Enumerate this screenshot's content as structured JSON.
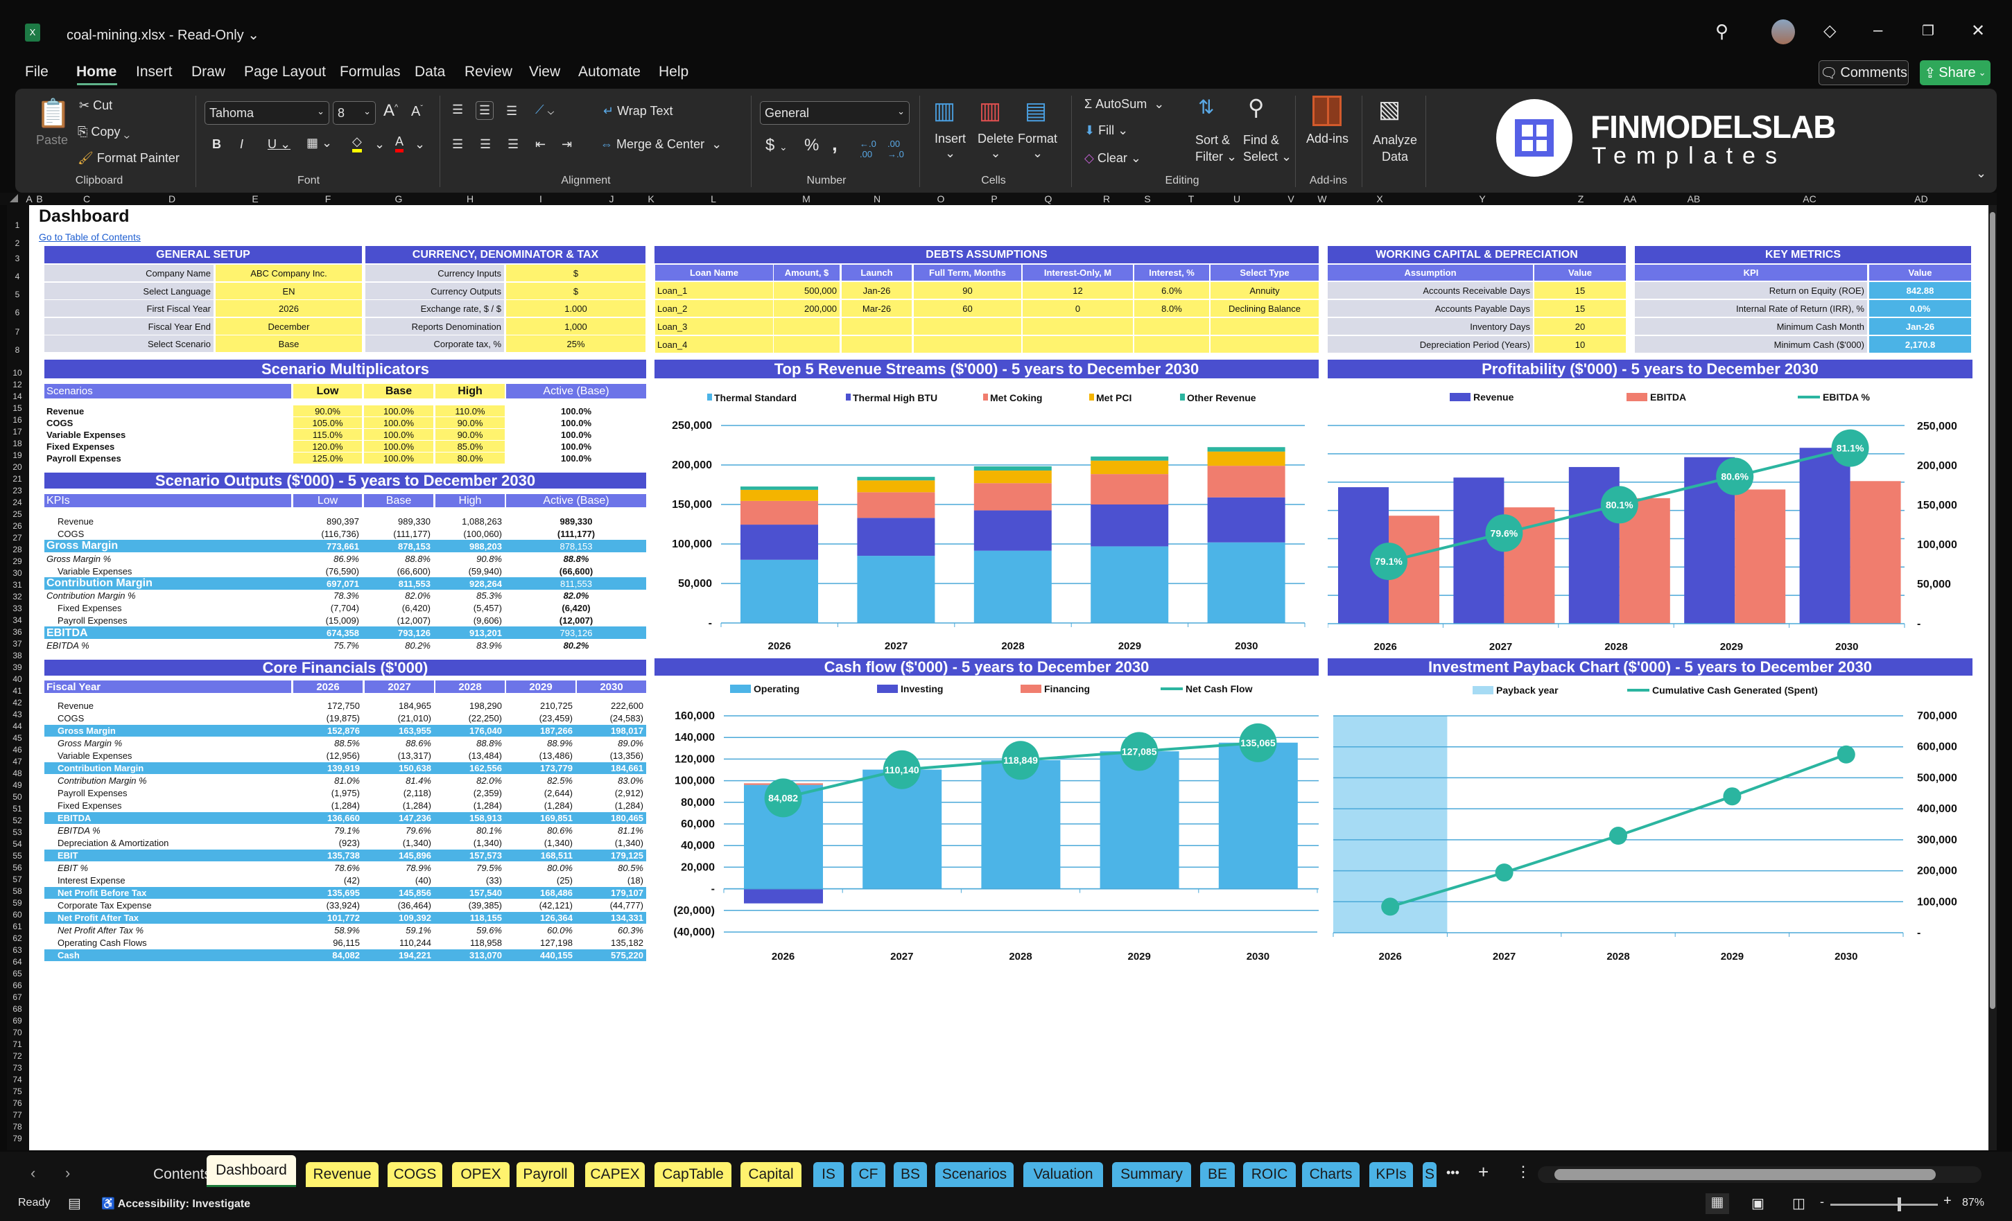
{
  "window": {
    "title": "coal-mining.xlsx  -  Read-Only",
    "title_chevron": "⌄",
    "comments_label": "Comments",
    "share_label": "Share"
  },
  "menu": [
    "File",
    "Home",
    "Insert",
    "Draw",
    "Page Layout",
    "Formulas",
    "Data",
    "Review",
    "View",
    "Automate",
    "Help"
  ],
  "menu_active": "Home",
  "ribbon": {
    "paste": "Paste",
    "cut": "Cut",
    "copy": "Copy",
    "format_painter": "Format Painter",
    "clipboard": "Clipboard",
    "font_name": "Tahoma",
    "font_size": "8",
    "font": "Font",
    "wrap_text": "Wrap Text",
    "merge_center": "Merge & Center",
    "alignment": "Alignment",
    "number_format": "General",
    "number": "Number",
    "insert": "Insert",
    "delete": "Delete",
    "format": "Format",
    "cells": "Cells",
    "autosum": "AutoSum",
    "fill": "Fill",
    "clear": "Clear",
    "sort_filter_1": "Sort &",
    "sort_filter_2": "Filter",
    "find_select_1": "Find &",
    "find_select_2": "Select",
    "editing": "Editing",
    "addins": "Add-ins",
    "addins_group": "Add-ins",
    "analyze_1": "Analyze",
    "analyze_2": "Data",
    "logo_brand": "FINMODELSLAB",
    "logo_sub": "Templates"
  },
  "sheet": {
    "title": "Dashboard",
    "toc_link": "Go to Table of Contents",
    "columns": [
      "A",
      "B",
      "C",
      "D",
      "E",
      "F",
      "G",
      "H",
      "I",
      "J",
      "K",
      "L",
      "M",
      "N",
      "O",
      "P",
      "Q",
      "R",
      "S",
      "T",
      "U",
      "V",
      "W",
      "X",
      "Y",
      "Z",
      "AA",
      "AB",
      "AC",
      "AD"
    ],
    "rows": [
      "1",
      "2",
      "3",
      "4",
      "5",
      "6",
      "7",
      "8",
      "10",
      "12",
      "14",
      "15",
      "16",
      "17",
      "18",
      "19",
      "20",
      "21",
      "23",
      "24",
      "25",
      "26",
      "27",
      "28",
      "29",
      "30",
      "31",
      "32",
      "33",
      "34",
      "36",
      "37",
      "38",
      "39",
      "40",
      "41",
      "42",
      "43",
      "44",
      "45",
      "46",
      "47",
      "48",
      "49",
      "50",
      "51",
      "52",
      "53",
      "54",
      "55",
      "56",
      "57",
      "58",
      "59",
      "60",
      "61",
      "62",
      "63",
      "64",
      "65",
      "66",
      "67",
      "68",
      "69",
      "70",
      "71",
      "72",
      "73",
      "74",
      "75",
      "76",
      "77",
      "78",
      "79"
    ]
  },
  "general_setup": {
    "title": "GENERAL SETUP",
    "rows": [
      [
        "Company Name",
        "ABC Company Inc."
      ],
      [
        "Select Language",
        "EN"
      ],
      [
        "First Fiscal Year",
        "2026"
      ],
      [
        "Fiscal Year End",
        "December"
      ],
      [
        "Select Scenario",
        "Base"
      ]
    ]
  },
  "currency": {
    "title": "CURRENCY, DENOMINATOR & TAX",
    "rows": [
      [
        "Currency Inputs",
        "$"
      ],
      [
        "Currency Outputs",
        "$"
      ],
      [
        "Exchange rate, $ / $",
        "1.000"
      ],
      [
        "Reports Denomination",
        "1,000"
      ],
      [
        "Corporate tax, %",
        "25%"
      ]
    ]
  },
  "debts": {
    "title": "DEBTS ASSUMPTIONS",
    "headers": [
      "Loan Name",
      "Amount, $",
      "Launch",
      "Full Term, Months",
      "Interest-Only, M",
      "Interest, %",
      "Select Type"
    ],
    "rows": [
      [
        "Loan_1",
        "500,000",
        "Jan-26",
        "90",
        "12",
        "6.0%",
        "Annuity"
      ],
      [
        "Loan_2",
        "200,000",
        "Mar-26",
        "60",
        "0",
        "8.0%",
        "Declining Balance"
      ],
      [
        "Loan_3",
        "",
        "",
        "",
        "",
        "",
        ""
      ],
      [
        "Loan_4",
        "",
        "",
        "",
        "",
        "",
        ""
      ]
    ]
  },
  "working_capital": {
    "title": "WORKING CAPITAL & DEPRECIATION",
    "headers": [
      "Assumption",
      "Value"
    ],
    "rows": [
      [
        "Accounts Receivable Days",
        "15"
      ],
      [
        "Accounts Payable Days",
        "15"
      ],
      [
        "Inventory Days",
        "20"
      ],
      [
        "Depreciation Period (Years)",
        "10"
      ]
    ]
  },
  "key_metrics": {
    "title": "KEY METRICS",
    "headers": [
      "KPI",
      "Value"
    ],
    "rows": [
      [
        "Return on Equity (ROE)",
        "842.88"
      ],
      [
        "Internal Rate of Return (IRR), %",
        "0.0%"
      ],
      [
        "Minimum Cash Month",
        "Jan-26"
      ],
      [
        "Minimum Cash ($'000)",
        "2,170.8"
      ]
    ]
  },
  "scenario_multiplicators": {
    "title": "Scenario Multiplicators",
    "headers": [
      "Scenarios",
      "Low",
      "Base",
      "High",
      "Active (Base)"
    ],
    "rows": [
      [
        "Revenue",
        "90.0%",
        "100.0%",
        "110.0%",
        "100.0%"
      ],
      [
        "COGS",
        "105.0%",
        "100.0%",
        "90.0%",
        "100.0%"
      ],
      [
        "Variable Expenses",
        "115.0%",
        "100.0%",
        "90.0%",
        "100.0%"
      ],
      [
        "Fixed Expenses",
        "120.0%",
        "100.0%",
        "85.0%",
        "100.0%"
      ],
      [
        "Payroll Expenses",
        "125.0%",
        "100.0%",
        "80.0%",
        "100.0%"
      ]
    ]
  },
  "scenario_outputs": {
    "title": "Scenario Outputs ($'000) - 5 years to December 2030",
    "headers": [
      "KPIs",
      "Low",
      "Base",
      "High",
      "Active (Base)"
    ],
    "rows": [
      {
        "style": "normal",
        "label": "Revenue",
        "values": [
          "890,397",
          "989,330",
          "1,088,263",
          "989,330"
        ]
      },
      {
        "style": "normal",
        "label": "COGS",
        "values": [
          "(116,736)",
          "(111,177)",
          "(100,060)",
          "(111,177)"
        ]
      },
      {
        "style": "band",
        "label": "Gross Margin",
        "values": [
          "773,661",
          "878,153",
          "988,203",
          "878,153"
        ]
      },
      {
        "style": "pct",
        "label": "Gross Margin %",
        "values": [
          "86.9%",
          "88.8%",
          "90.8%",
          "88.8%"
        ]
      },
      {
        "style": "normal",
        "label": "Variable Expenses",
        "values": [
          "(76,590)",
          "(66,600)",
          "(59,940)",
          "(66,600)"
        ]
      },
      {
        "style": "band",
        "label": "Contribution Margin",
        "values": [
          "697,071",
          "811,553",
          "928,264",
          "811,553"
        ]
      },
      {
        "style": "pct",
        "label": "Contribution Margin %",
        "values": [
          "78.3%",
          "82.0%",
          "85.3%",
          "82.0%"
        ]
      },
      {
        "style": "normal",
        "label": "Fixed Expenses",
        "values": [
          "(7,704)",
          "(6,420)",
          "(5,457)",
          "(6,420)"
        ]
      },
      {
        "style": "normal",
        "label": "Payroll Expenses",
        "values": [
          "(15,009)",
          "(12,007)",
          "(9,606)",
          "(12,007)"
        ]
      },
      {
        "style": "band",
        "label": "EBITDA",
        "values": [
          "674,358",
          "793,126",
          "913,201",
          "793,126"
        ]
      },
      {
        "style": "pct",
        "label": "EBITDA %",
        "values": [
          "75.7%",
          "80.2%",
          "83.9%",
          "80.2%"
        ]
      }
    ]
  },
  "core_financials": {
    "title": "Core Financials ($'000)",
    "headers": [
      "Fiscal Year",
      "2026",
      "2027",
      "2028",
      "2029",
      "2030"
    ],
    "rows": [
      {
        "style": "normal",
        "label": "Revenue",
        "values": [
          "172,750",
          "184,965",
          "198,290",
          "210,725",
          "222,600"
        ]
      },
      {
        "style": "normal",
        "label": "COGS",
        "values": [
          "(19,875)",
          "(21,010)",
          "(22,250)",
          "(23,459)",
          "(24,583)"
        ]
      },
      {
        "style": "band",
        "label": "Gross Margin",
        "values": [
          "152,876",
          "163,955",
          "176,040",
          "187,266",
          "198,017"
        ]
      },
      {
        "style": "pct",
        "label": "Gross Margin %",
        "values": [
          "88.5%",
          "88.6%",
          "88.8%",
          "88.9%",
          "89.0%"
        ]
      },
      {
        "style": "normal",
        "label": "Variable Expenses",
        "values": [
          "(12,956)",
          "(13,317)",
          "(13,484)",
          "(13,486)",
          "(13,356)"
        ]
      },
      {
        "style": "band",
        "label": "Contribution Margin",
        "values": [
          "139,919",
          "150,638",
          "162,556",
          "173,779",
          "184,661"
        ]
      },
      {
        "style": "pct",
        "label": "Contribution Margin %",
        "values": [
          "81.0%",
          "81.4%",
          "82.0%",
          "82.5%",
          "83.0%"
        ]
      },
      {
        "style": "normal",
        "label": "Payroll Expenses",
        "values": [
          "(1,975)",
          "(2,118)",
          "(2,359)",
          "(2,644)",
          "(2,912)"
        ]
      },
      {
        "style": "normal",
        "label": "Fixed Expenses",
        "values": [
          "(1,284)",
          "(1,284)",
          "(1,284)",
          "(1,284)",
          "(1,284)"
        ]
      },
      {
        "style": "band",
        "label": "EBITDA",
        "values": [
          "136,660",
          "147,236",
          "158,913",
          "169,851",
          "180,465"
        ]
      },
      {
        "style": "pct",
        "label": "EBITDA %",
        "values": [
          "79.1%",
          "79.6%",
          "80.1%",
          "80.6%",
          "81.1%"
        ]
      },
      {
        "style": "normal",
        "label": "Depreciation & Amortization",
        "values": [
          "(923)",
          "(1,340)",
          "(1,340)",
          "(1,340)",
          "(1,340)"
        ]
      },
      {
        "style": "band",
        "label": "EBIT",
        "values": [
          "135,738",
          "145,896",
          "157,573",
          "168,511",
          "179,125"
        ]
      },
      {
        "style": "pct",
        "label": "EBIT %",
        "values": [
          "78.6%",
          "78.9%",
          "79.5%",
          "80.0%",
          "80.5%"
        ]
      },
      {
        "style": "normal",
        "label": "Interest Expense",
        "values": [
          "(42)",
          "(40)",
          "(33)",
          "(25)",
          "(18)"
        ]
      },
      {
        "style": "band",
        "label": "Net Profit Before Tax",
        "values": [
          "135,695",
          "145,856",
          "157,540",
          "168,486",
          "179,107"
        ]
      },
      {
        "style": "normal",
        "label": "Corporate Tax Expense",
        "values": [
          "(33,924)",
          "(36,464)",
          "(39,385)",
          "(42,121)",
          "(44,777)"
        ]
      },
      {
        "style": "band",
        "label": "Net Profit After Tax",
        "values": [
          "101,772",
          "109,392",
          "118,155",
          "126,364",
          "134,331"
        ]
      },
      {
        "style": "pct",
        "label": "Net Profit After Tax %",
        "values": [
          "58.9%",
          "59.1%",
          "59.6%",
          "60.0%",
          "60.3%"
        ]
      },
      {
        "style": "normal",
        "label": "Operating Cash Flows",
        "values": [
          "96,115",
          "110,244",
          "118,958",
          "127,198",
          "135,182"
        ]
      },
      {
        "style": "band",
        "label": "Cash",
        "values": [
          "84,082",
          "194,221",
          "313,070",
          "440,155",
          "575,220"
        ]
      }
    ]
  },
  "chart_data": [
    {
      "id": "revenue",
      "type": "bar",
      "stacked": true,
      "title": "Top 5 Revenue Streams ($'000) - 5 years to December 2030",
      "categories": [
        "2026",
        "2027",
        "2028",
        "2029",
        "2030"
      ],
      "ylim": [
        0,
        250000
      ],
      "yticks": [
        "-",
        "50,000",
        "100,000",
        "150,000",
        "200,000",
        "250,000"
      ],
      "grid": true,
      "legend": "top",
      "series": [
        {
          "name": "Thermal Standard",
          "color": "#4cb4e7",
          "values": [
            80000,
            85000,
            91500,
            97000,
            102000
          ]
        },
        {
          "name": "Thermal High BTU",
          "color": "#4c51d0",
          "values": [
            44500,
            48000,
            51000,
            53000,
            57000
          ]
        },
        {
          "name": "Met Coking",
          "color": "#f07d6e",
          "values": [
            30000,
            32500,
            34500,
            38500,
            40000
          ]
        },
        {
          "name": "Met PCI",
          "color": "#f4b400",
          "values": [
            14000,
            15000,
            16000,
            17000,
            18000
          ]
        },
        {
          "name": "Other Revenue",
          "color": "#2bb5a0",
          "values": [
            4250,
            4465,
            5290,
            5225,
            5600
          ]
        }
      ]
    },
    {
      "id": "profitability",
      "type": "bar+line",
      "title": "Profitability ($'000) - 5 years to December 2030",
      "categories": [
        "2026",
        "2027",
        "2028",
        "2029",
        "2030"
      ],
      "ylim": [
        0,
        250000
      ],
      "yticks": [
        "-",
        "50,000",
        "100,000",
        "150,000",
        "200,000",
        "250,000"
      ],
      "y_axis_side": "right",
      "y2lim": [
        78,
        81.5
      ],
      "grid": true,
      "legend": "top",
      "series": [
        {
          "name": "Revenue",
          "kind": "bar",
          "color": "#4c51d0",
          "values": [
            172750,
            184965,
            198290,
            210725,
            222600
          ]
        },
        {
          "name": "EBITDA",
          "kind": "bar",
          "color": "#f07d6e",
          "values": [
            136660,
            147236,
            158913,
            169851,
            180465
          ]
        },
        {
          "name": "EBITDA %",
          "kind": "line",
          "axis": "secondary",
          "color": "#2bb5a0",
          "values": [
            79.1,
            79.6,
            80.1,
            80.6,
            81.1
          ],
          "labels": [
            "79.1%",
            "79.6%",
            "80.1%",
            "80.6%",
            "81.1%"
          ]
        }
      ]
    },
    {
      "id": "cashflow",
      "type": "bar+line",
      "stacked": true,
      "title": "Cash flow ($'000) - 5 years to December 2030",
      "categories": [
        "2026",
        "2027",
        "2028",
        "2029",
        "2030"
      ],
      "ylim": [
        -40000,
        160000
      ],
      "yticks": [
        "(40,000)",
        "(20,000)",
        "-",
        "20,000",
        "40,000",
        "60,000",
        "80,000",
        "100,000",
        "120,000",
        "140,000",
        "160,000"
      ],
      "grid": true,
      "legend": "top",
      "series": [
        {
          "name": "Operating",
          "kind": "bar",
          "color": "#4cb4e7",
          "values": [
            96115,
            110244,
            118958,
            127198,
            135182
          ]
        },
        {
          "name": "Investing",
          "kind": "bar",
          "color": "#4c51d0",
          "values": [
            -13500,
            0,
            0,
            0,
            0
          ]
        },
        {
          "name": "Financing",
          "kind": "bar",
          "color": "#f07d6e",
          "values": [
            1467,
            -104,
            -109,
            -113,
            -117
          ]
        },
        {
          "name": "Net Cash Flow",
          "kind": "line",
          "color": "#2bb5a0",
          "values": [
            84082,
            110140,
            118849,
            127085,
            135065
          ],
          "labels": [
            "84,082",
            "110,140",
            "118,849",
            "127,085",
            "135,065"
          ]
        }
      ]
    },
    {
      "id": "payback",
      "type": "bar+line",
      "title": "Investment Payback Chart ($'000) - 5 years to December 2030",
      "categories": [
        "2026",
        "2027",
        "2028",
        "2029",
        "2030"
      ],
      "ylim": [
        0,
        700000
      ],
      "yticks": [
        "-",
        "100,000",
        "200,000",
        "300,000",
        "400,000",
        "500,000",
        "600,000",
        "700,000"
      ],
      "y_axis_side": "right",
      "grid": true,
      "legend": "top",
      "series": [
        {
          "name": "Payback year",
          "kind": "bar",
          "color": "#a6dbf4",
          "values": [
            700000,
            0,
            0,
            0,
            0
          ]
        },
        {
          "name": "Cumulative Cash Generated (Spent)",
          "kind": "line",
          "color": "#2bb5a0",
          "values": [
            84082,
            194221,
            313070,
            440155,
            575220
          ]
        }
      ]
    }
  ],
  "sheet_tabs": [
    {
      "label": "Contents",
      "color": "none"
    },
    {
      "label": "Dashboard",
      "color": "active"
    },
    {
      "label": "Revenue",
      "color": "#fff36e"
    },
    {
      "label": "COGS",
      "color": "#fff36e"
    },
    {
      "label": "OPEX",
      "color": "#fff36e"
    },
    {
      "label": "Payroll",
      "color": "#fff36e"
    },
    {
      "label": "CAPEX",
      "color": "#fff36e"
    },
    {
      "label": "CapTable",
      "color": "#fff36e"
    },
    {
      "label": "Capital",
      "color": "#fff36e"
    },
    {
      "label": "IS",
      "color": "#4bb3e6"
    },
    {
      "label": "CF",
      "color": "#4bb3e6"
    },
    {
      "label": "BS",
      "color": "#4bb3e6"
    },
    {
      "label": "Scenarios",
      "color": "#4bb3e6"
    },
    {
      "label": "Valuation",
      "color": "#4bb3e6"
    },
    {
      "label": "Summary",
      "color": "#4bb3e6"
    },
    {
      "label": "BE",
      "color": "#4bb3e6"
    },
    {
      "label": "ROIC",
      "color": "#4bb3e6"
    },
    {
      "label": "Charts",
      "color": "#4bb3e6"
    },
    {
      "label": "KPIs",
      "color": "#4bb3e6"
    },
    {
      "label": "S",
      "color": "#4bb3e6"
    }
  ],
  "status": {
    "ready": "Ready",
    "accessibility": "Accessibility: Investigate",
    "zoom": "87%",
    "zoom_level": 87
  }
}
